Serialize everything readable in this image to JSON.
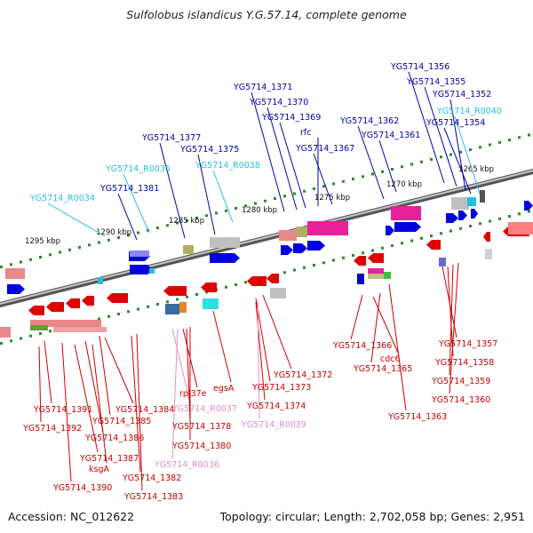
{
  "title": "Sulfolobus islandicus Y.G.57.14, complete genome",
  "footer": {
    "accession": "Accession: NC_012622",
    "topology": "Topology: circular; Length: 2,702,058 bp; Genes: 2,951"
  },
  "colors": {
    "gene": "#e00000",
    "gene_label": "#cc0000",
    "gene_minus_label": "#0000aa",
    "trna": "#28c0e0",
    "trna_label": "#e090c0",
    "backbone": "#888888",
    "tick": "#2a8a2a"
  },
  "scale_labels": [
    "1295 kbp",
    "1290 kbp",
    "1285 kbp",
    "1280 kbp",
    "1275 kbp",
    "1270 kbp",
    "1265 kbp"
  ],
  "top_labels": [
    {
      "text": "YG5714_1356",
      "kind": "minus"
    },
    {
      "text": "YG5714_1355",
      "kind": "minus"
    },
    {
      "text": "YG5714_1352",
      "kind": "minus"
    },
    {
      "text": "YG5714_R0040",
      "kind": "trna_minus"
    },
    {
      "text": "YG5714_1371",
      "kind": "minus"
    },
    {
      "text": "YG5714_1354",
      "kind": "minus"
    },
    {
      "text": "YG5714_1370",
      "kind": "minus"
    },
    {
      "text": "YG5714_1369",
      "kind": "minus"
    },
    {
      "text": "YG5714_1362",
      "kind": "minus"
    },
    {
      "text": "rfc",
      "kind": "minus"
    },
    {
      "text": "YG5714_1361",
      "kind": "minus"
    },
    {
      "text": "YG5714_1377",
      "kind": "minus"
    },
    {
      "text": "YG5714_1375",
      "kind": "minus"
    },
    {
      "text": "YG5714_1367",
      "kind": "minus"
    },
    {
      "text": "YG5714_R0035",
      "kind": "trna_minus"
    },
    {
      "text": "YG5714_R0038",
      "kind": "trna_minus"
    },
    {
      "text": "YG5714_1381",
      "kind": "minus"
    },
    {
      "text": "YG5714_R0034",
      "kind": "trna_minus"
    }
  ],
  "bottom_labels": [
    {
      "text": "YG5714_1357",
      "kind": "plus"
    },
    {
      "text": "YG5714_1366",
      "kind": "plus"
    },
    {
      "text": "cdc6",
      "kind": "plus"
    },
    {
      "text": "YG5714_1358",
      "kind": "plus"
    },
    {
      "text": "YG5714_1365",
      "kind": "plus"
    },
    {
      "text": "YG5714_1372",
      "kind": "plus"
    },
    {
      "text": "YG5714_1359",
      "kind": "plus"
    },
    {
      "text": "egsA",
      "kind": "plus"
    },
    {
      "text": "YG5714_1373",
      "kind": "plus"
    },
    {
      "text": "rpl37e",
      "kind": "plus"
    },
    {
      "text": "YG5714_1360",
      "kind": "plus"
    },
    {
      "text": "YG5714_1391",
      "kind": "plus"
    },
    {
      "text": "YG5714_1384",
      "kind": "plus"
    },
    {
      "text": "YG5714_R0037",
      "kind": "trna_plus"
    },
    {
      "text": "YG5714_1374",
      "kind": "plus"
    },
    {
      "text": "YG5714_1385",
      "kind": "plus"
    },
    {
      "text": "YG5714_1363",
      "kind": "plus"
    },
    {
      "text": "YG5714_1378",
      "kind": "plus"
    },
    {
      "text": "YG5714_1392",
      "kind": "plus"
    },
    {
      "text": "YG5714_R0039",
      "kind": "trna_plus"
    },
    {
      "text": "YG5714_1386",
      "kind": "plus"
    },
    {
      "text": "YG5714_1380",
      "kind": "plus"
    },
    {
      "text": "YG5714_1387",
      "kind": "plus"
    },
    {
      "text": "YG5714_R0036",
      "kind": "trna_plus"
    },
    {
      "text": "ksgA",
      "kind": "plus"
    },
    {
      "text": "YG5714_1382",
      "kind": "plus"
    },
    {
      "text": "YG5714_1390",
      "kind": "plus"
    },
    {
      "text": "YG5714_1383",
      "kind": "plus"
    }
  ]
}
